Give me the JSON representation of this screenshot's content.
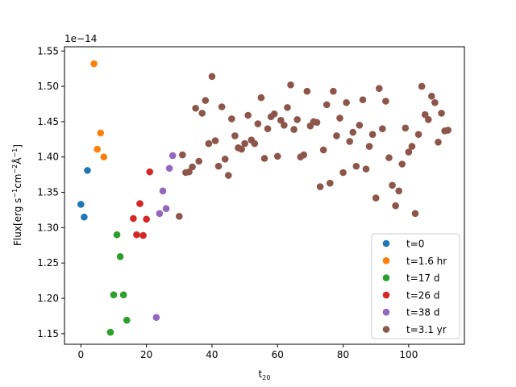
{
  "chart_data": {
    "type": "scatter",
    "title": "",
    "xlabel": "t",
    "xlabel_subscript": "20",
    "ylabel": "Flux[erg s",
    "ylabel_sup1": "−1",
    "ylabel_mid": "cm",
    "ylabel_sup2": "−2",
    "ylabel_sup3": "−1",
    "ylabel_end": "]",
    "y_offset_text": "1e−14",
    "xlim": [
      -5,
      117
    ],
    "ylim": [
      1.135,
      1.556
    ],
    "xticks": [
      0,
      20,
      40,
      60,
      80,
      100
    ],
    "yticks": [
      1.15,
      1.2,
      1.25,
      1.3,
      1.35,
      1.4,
      1.45,
      1.5,
      1.55
    ],
    "ytick_labels": [
      "1.15",
      "1.20",
      "1.25",
      "1.30",
      "1.35",
      "1.40",
      "1.45",
      "1.50",
      "1.55"
    ],
    "grid": false,
    "legend_position": "lower right",
    "series": [
      {
        "name": "t=0",
        "color": "#1f77b4",
        "points": [
          [
            0,
            1.333
          ],
          [
            1,
            1.315
          ],
          [
            2,
            1.381
          ]
        ]
      },
      {
        "name": "t=1.6 hr",
        "color": "#ff7f0e",
        "points": [
          [
            4,
            1.532
          ],
          [
            5,
            1.411
          ],
          [
            6,
            1.434
          ],
          [
            7,
            1.4
          ]
        ]
      },
      {
        "name": "t=17 d",
        "color": "#2ca02c",
        "points": [
          [
            9,
            1.152
          ],
          [
            10,
            1.205
          ],
          [
            11,
            1.29
          ],
          [
            12,
            1.259
          ],
          [
            13,
            1.205
          ],
          [
            14,
            1.169
          ]
        ]
      },
      {
        "name": "t=26 d",
        "color": "#d62728",
        "points": [
          [
            16,
            1.313
          ],
          [
            17,
            1.29
          ],
          [
            18,
            1.334
          ],
          [
            19,
            1.289
          ],
          [
            20,
            1.312
          ],
          [
            21,
            1.379
          ]
        ]
      },
      {
        "name": "t=38 d",
        "color": "#9467bd",
        "points": [
          [
            23,
            1.173
          ],
          [
            24,
            1.32
          ],
          [
            25,
            1.352
          ],
          [
            26,
            1.327
          ],
          [
            27,
            1.384
          ],
          [
            28,
            1.402
          ]
        ]
      },
      {
        "name": "t=3.1 yr",
        "color": "#8c564b",
        "points": [
          [
            30,
            1.316
          ],
          [
            31,
            1.403
          ],
          [
            32,
            1.378
          ],
          [
            33,
            1.379
          ],
          [
            34,
            1.386
          ],
          [
            35,
            1.469
          ],
          [
            36,
            1.394
          ],
          [
            37,
            1.462
          ],
          [
            38,
            1.48
          ],
          [
            39,
            1.419
          ],
          [
            40,
            1.514
          ],
          [
            41,
            1.423
          ],
          [
            42,
            1.387
          ],
          [
            43,
            1.471
          ],
          [
            44,
            1.397
          ],
          [
            45,
            1.374
          ],
          [
            46,
            1.454
          ],
          [
            47,
            1.43
          ],
          [
            48,
            1.413
          ],
          [
            49,
            1.411
          ],
          [
            50,
            1.419
          ],
          [
            51,
            1.459
          ],
          [
            52,
            1.424
          ],
          [
            53,
            1.419
          ],
          [
            54,
            1.447
          ],
          [
            55,
            1.484
          ],
          [
            56,
            1.398
          ],
          [
            57,
            1.44
          ],
          [
            58,
            1.457
          ],
          [
            59,
            1.461
          ],
          [
            60,
            1.401
          ],
          [
            61,
            1.452
          ],
          [
            62,
            1.445
          ],
          [
            63,
            1.47
          ],
          [
            64,
            1.502
          ],
          [
            65,
            1.439
          ],
          [
            66,
            1.453
          ],
          [
            67,
            1.4
          ],
          [
            68,
            1.403
          ],
          [
            69,
            1.493
          ],
          [
            70,
            1.444
          ],
          [
            71,
            1.45
          ],
          [
            72,
            1.449
          ],
          [
            73,
            1.358
          ],
          [
            74,
            1.41
          ],
          [
            75,
            1.474
          ],
          [
            76,
            1.363
          ],
          [
            77,
            1.493
          ],
          [
            78,
            1.43
          ],
          [
            79,
            1.455
          ],
          [
            80,
            1.378
          ],
          [
            81,
            1.477
          ],
          [
            82,
            1.422
          ],
          [
            83,
            1.435
          ],
          [
            84,
            1.387
          ],
          [
            85,
            1.445
          ],
          [
            86,
            1.481
          ],
          [
            87,
            1.383
          ],
          [
            88,
            1.415
          ],
          [
            89,
            1.432
          ],
          [
            90,
            1.342
          ],
          [
            91,
            1.497
          ],
          [
            92,
            1.44
          ],
          [
            93,
            1.479
          ],
          [
            94,
            1.399
          ],
          [
            95,
            1.36
          ],
          [
            96,
            1.331
          ],
          [
            97,
            1.352
          ],
          [
            98,
            1.39
          ],
          [
            99,
            1.441
          ],
          [
            100,
            1.407
          ],
          [
            101,
            1.415
          ],
          [
            102,
            1.32
          ],
          [
            103,
            1.432
          ],
          [
            104,
            1.5
          ],
          [
            105,
            1.46
          ],
          [
            106,
            1.453
          ],
          [
            107,
            1.486
          ],
          [
            108,
            1.477
          ],
          [
            109,
            1.421
          ],
          [
            110,
            1.462
          ],
          [
            111,
            1.437
          ],
          [
            112,
            1.438
          ]
        ]
      }
    ]
  }
}
